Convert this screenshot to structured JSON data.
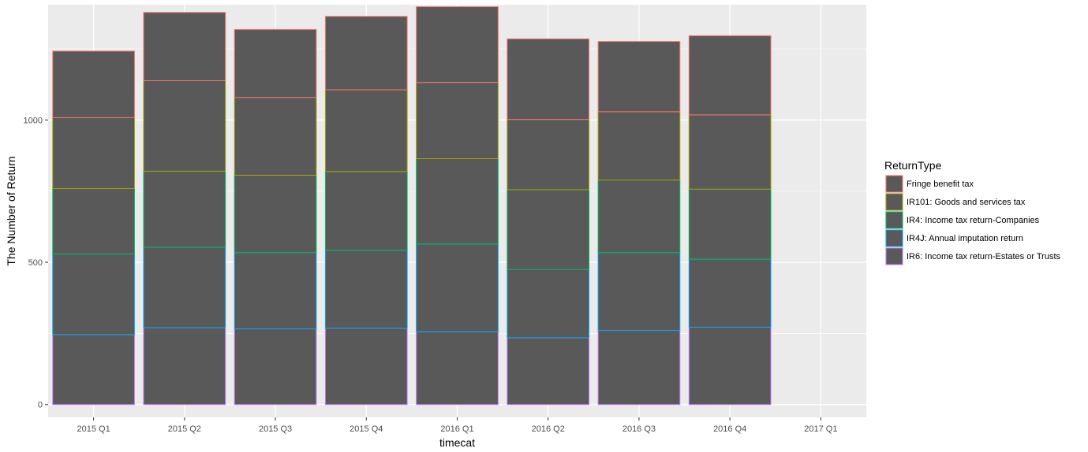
{
  "chart_data": {
    "type": "bar",
    "stacked": true,
    "xlabel": "timecat",
    "ylabel": "The Number of Return",
    "categories": [
      "2015 Q1",
      "2015 Q2",
      "2015 Q3",
      "2015 Q4",
      "2016 Q1",
      "2016 Q2",
      "2016 Q3",
      "2016 Q4",
      "2017 Q1"
    ],
    "ylim": [
      -45,
      1405
    ],
    "yticks": [
      0,
      500,
      1000
    ],
    "ytick_labels": [
      "0",
      "500",
      "1000"
    ],
    "grid": true,
    "legend": {
      "title": "ReturnType",
      "position": "right"
    },
    "series": [
      {
        "name": "IR6: Income tax return-Estates or Trusts",
        "color": "#C77CFF",
        "values": [
          246,
          270,
          266,
          268,
          256,
          235,
          261,
          272,
          0
        ]
      },
      {
        "name": "IR4J: Annual imputation return",
        "color": "#00A9FF",
        "values": [
          283,
          283,
          268,
          274,
          308,
          240,
          273,
          239,
          0
        ]
      },
      {
        "name": "IR4: Income tax return-Companies",
        "color": "#00BE67",
        "values": [
          230,
          267,
          272,
          277,
          300,
          280,
          255,
          246,
          0
        ]
      },
      {
        "name": "IR101: Goods and services tax",
        "color": "#A3A500",
        "values": [
          249,
          318,
          273,
          287,
          268,
          247,
          240,
          261,
          0
        ]
      },
      {
        "name": "Fringe benefit tax",
        "color": "#F8766D",
        "values": [
          234,
          240,
          239,
          258,
          266,
          283,
          247,
          278,
          0
        ]
      }
    ],
    "bar_fill": "#595959",
    "panel_background": "#EBEBEB",
    "grid_color": "#FFFFFF"
  }
}
